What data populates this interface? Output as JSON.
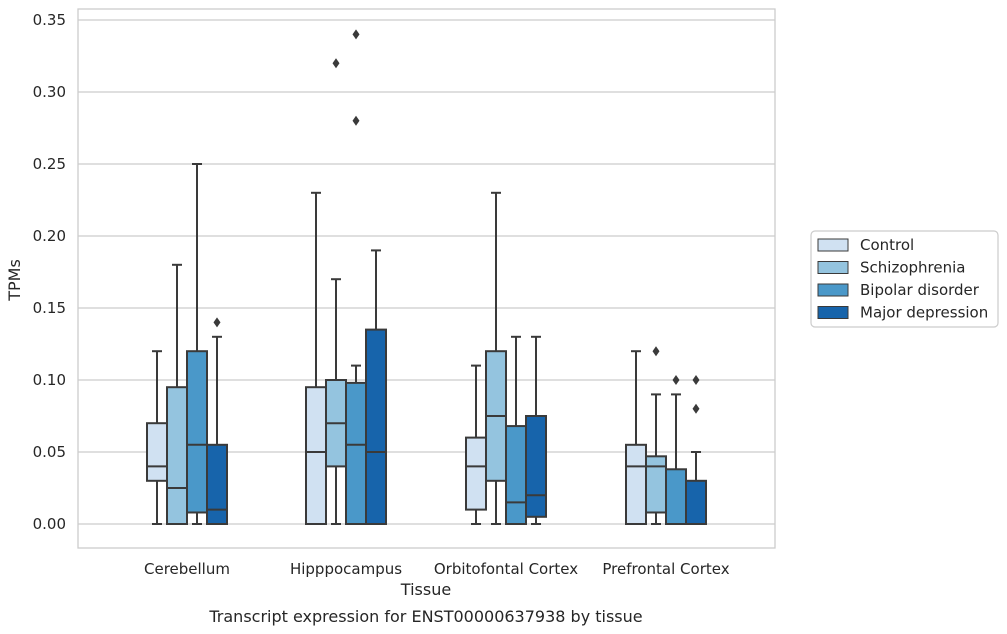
{
  "chart_data": {
    "type": "box",
    "title": "",
    "caption": "Transcript expression for ENST00000637938 by tissue",
    "xlabel": "Tissue",
    "ylabel": "TPMs",
    "ylim": [
      -0.0165,
      0.357
    ],
    "yticks": [
      "0.00",
      "0.05",
      "0.10",
      "0.15",
      "0.20",
      "0.25",
      "0.30",
      "0.35"
    ],
    "ytick_values": [
      0,
      0.05,
      0.1,
      0.15,
      0.2,
      0.25,
      0.3,
      0.35
    ],
    "grid": "horizontal",
    "legend_position": "right",
    "categories": [
      "Cerebellum",
      "Hipppocampus",
      "Orbitofontal Cortex",
      "Prefrontal Cortex"
    ],
    "series": [
      {
        "name": "Control",
        "color": "#d0e1f2",
        "boxes": [
          {
            "whislo": 0.0,
            "q1": 0.03,
            "med": 0.04,
            "q3": 0.07,
            "whishi": 0.12,
            "fliers": []
          },
          {
            "whislo": 0.0,
            "q1": 0.0,
            "med": 0.05,
            "q3": 0.095,
            "whishi": 0.23,
            "fliers": []
          },
          {
            "whislo": 0.0,
            "q1": 0.01,
            "med": 0.04,
            "q3": 0.06,
            "whishi": 0.11,
            "fliers": []
          },
          {
            "whislo": 0.0,
            "q1": 0.0,
            "med": 0.04,
            "q3": 0.055,
            "whishi": 0.12,
            "fliers": []
          }
        ]
      },
      {
        "name": "Schizophrenia",
        "color": "#94c4df",
        "boxes": [
          {
            "whislo": 0.0,
            "q1": 0.0,
            "med": 0.025,
            "q3": 0.095,
            "whishi": 0.18,
            "fliers": []
          },
          {
            "whislo": 0.0,
            "q1": 0.04,
            "med": 0.07,
            "q3": 0.1,
            "whishi": 0.17,
            "fliers": [
              0.32
            ]
          },
          {
            "whislo": 0.0,
            "q1": 0.03,
            "med": 0.075,
            "q3": 0.12,
            "whishi": 0.23,
            "fliers": []
          },
          {
            "whislo": 0.0,
            "q1": 0.008,
            "med": 0.04,
            "q3": 0.047,
            "whishi": 0.09,
            "fliers": [
              0.12
            ]
          }
        ]
      },
      {
        "name": "Bipolar disorder",
        "color": "#4a98c9",
        "boxes": [
          {
            "whislo": 0.0,
            "q1": 0.008,
            "med": 0.055,
            "q3": 0.12,
            "whishi": 0.25,
            "fliers": []
          },
          {
            "whislo": 0.0,
            "q1": 0.0,
            "med": 0.055,
            "q3": 0.098,
            "whishi": 0.11,
            "fliers": [
              0.34,
              0.28
            ]
          },
          {
            "whislo": 0.0,
            "q1": 0.0,
            "med": 0.015,
            "q3": 0.068,
            "whishi": 0.13,
            "fliers": []
          },
          {
            "whislo": 0.0,
            "q1": 0.0,
            "med": 0.0,
            "q3": 0.038,
            "whishi": 0.09,
            "fliers": [
              0.1
            ]
          }
        ]
      },
      {
        "name": "Major depression",
        "color": "#1764ab",
        "boxes": [
          {
            "whislo": 0.0,
            "q1": 0.0,
            "med": 0.01,
            "q3": 0.055,
            "whishi": 0.13,
            "fliers": [
              0.14
            ]
          },
          {
            "whislo": 0.0,
            "q1": 0.0,
            "med": 0.05,
            "q3": 0.135,
            "whishi": 0.19,
            "fliers": []
          },
          {
            "whislo": 0.0,
            "q1": 0.005,
            "med": 0.02,
            "q3": 0.075,
            "whishi": 0.13,
            "fliers": []
          },
          {
            "whislo": 0.0,
            "q1": 0.0,
            "med": 0.0,
            "q3": 0.03,
            "whishi": 0.05,
            "fliers": [
              0.1,
              0.08
            ]
          }
        ]
      }
    ]
  }
}
